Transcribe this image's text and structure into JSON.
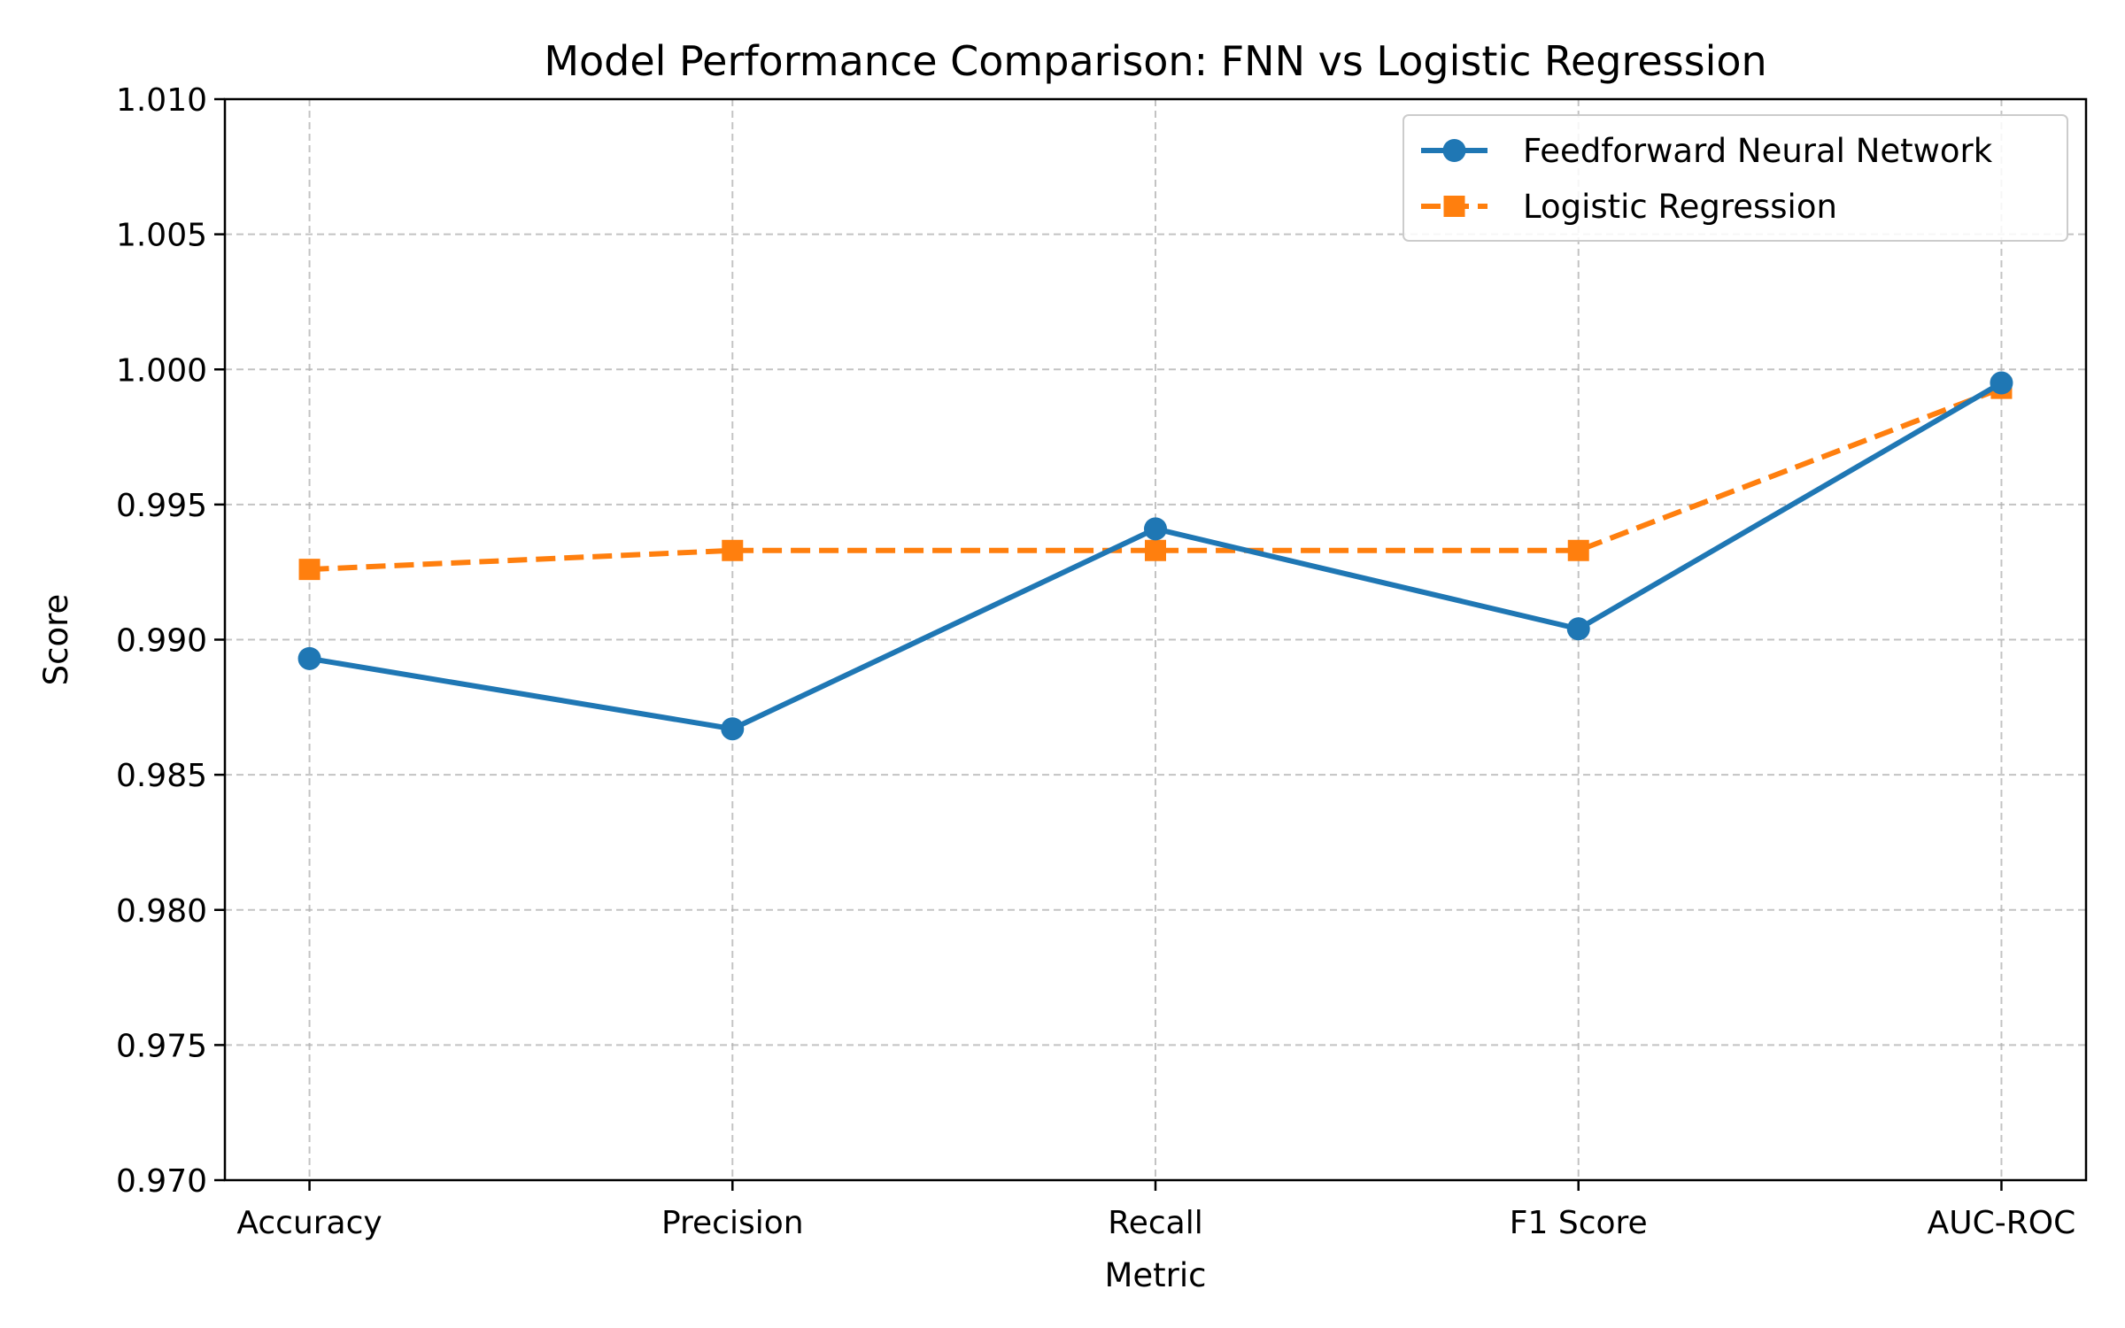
{
  "chart_data": {
    "type": "line",
    "title": "Model Performance Comparison: FNN vs Logistic Regression",
    "xlabel": "Metric",
    "ylabel": "Score",
    "categories": [
      "Accuracy",
      "Precision",
      "Recall",
      "F1 Score",
      "AUC-ROC"
    ],
    "ylim": [
      0.97,
      1.01
    ],
    "yticks": [
      "0.970",
      "0.975",
      "0.980",
      "0.985",
      "0.990",
      "0.995",
      "1.000",
      "1.005",
      "1.010"
    ],
    "grid": true,
    "legend_position": "top-right",
    "series": [
      {
        "name": "Feedforward Neural Network",
        "values": [
          0.9893,
          0.9867,
          0.9941,
          0.9904,
          0.9995
        ],
        "color": "#1f77b4",
        "marker": "circle",
        "line_style": "solid"
      },
      {
        "name": "Logistic Regression",
        "values": [
          0.9926,
          0.9933,
          0.9933,
          0.9933,
          0.9993
        ],
        "color": "#ff7f0e",
        "marker": "square",
        "line_style": "dashed"
      }
    ]
  }
}
